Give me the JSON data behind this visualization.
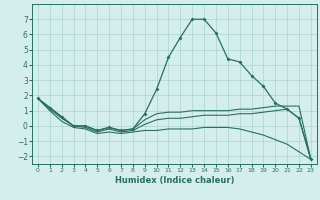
{
  "xlabel": "Humidex (Indice chaleur)",
  "x": [
    0,
    1,
    2,
    3,
    4,
    5,
    6,
    7,
    8,
    9,
    10,
    11,
    12,
    13,
    14,
    15,
    16,
    17,
    18,
    19,
    20,
    21,
    22,
    23
  ],
  "line1": [
    1.8,
    1.2,
    0.6,
    0.0,
    0.0,
    -0.3,
    -0.1,
    -0.3,
    -0.2,
    0.8,
    2.4,
    4.5,
    5.8,
    7.0,
    7.0,
    6.1,
    4.4,
    4.2,
    3.3,
    2.6,
    1.5,
    1.1,
    0.5,
    -2.2
  ],
  "line2": [
    1.8,
    1.2,
    0.6,
    0.0,
    0.0,
    -0.3,
    -0.1,
    -0.3,
    -0.2,
    0.4,
    0.8,
    0.9,
    0.9,
    1.0,
    1.0,
    1.0,
    1.0,
    1.1,
    1.1,
    1.2,
    1.3,
    1.3,
    1.3,
    -2.2
  ],
  "line3": [
    1.8,
    1.1,
    0.5,
    0.0,
    -0.1,
    -0.4,
    -0.2,
    -0.4,
    -0.3,
    0.1,
    0.4,
    0.5,
    0.5,
    0.6,
    0.7,
    0.7,
    0.7,
    0.8,
    0.8,
    0.9,
    1.0,
    1.1,
    0.5,
    -2.2
  ],
  "line4": [
    1.8,
    1.0,
    0.3,
    -0.1,
    -0.2,
    -0.5,
    -0.4,
    -0.5,
    -0.4,
    -0.3,
    -0.3,
    -0.2,
    -0.2,
    -0.2,
    -0.1,
    -0.1,
    -0.1,
    -0.2,
    -0.4,
    -0.6,
    -0.9,
    -1.2,
    -1.7,
    -2.2
  ],
  "color": "#2a6e62",
  "bg_color": "#d4eeed",
  "grid_color": "#aad4d0",
  "ylim": [
    -2.5,
    8.0
  ],
  "xlim": [
    -0.5,
    23.5
  ],
  "yticks": [
    -2,
    -1,
    0,
    1,
    2,
    3,
    4,
    5,
    6,
    7
  ],
  "xticks": [
    0,
    1,
    2,
    3,
    4,
    5,
    6,
    7,
    8,
    9,
    10,
    11,
    12,
    13,
    14,
    15,
    16,
    17,
    18,
    19,
    20,
    21,
    22,
    23
  ]
}
